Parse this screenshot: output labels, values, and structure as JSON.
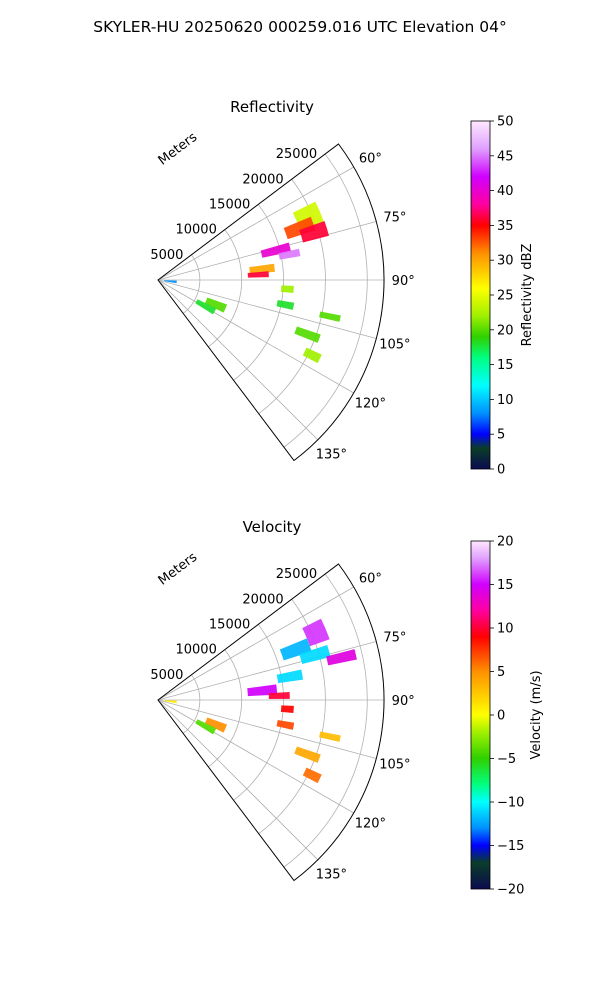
{
  "suptitle": "SKYLER-HU  20250620  000259.016 UTC Elevation 04°",
  "chart_data": [
    {
      "type": "heatmap",
      "title": "Reflectivity",
      "projection": "polar-sector",
      "azimuth_range_deg": [
        53,
        143
      ],
      "range_max_m": 27000,
      "range_label": "Meters",
      "range_ticks": [
        5000,
        10000,
        15000,
        20000,
        25000
      ],
      "range_tick_labels": [
        "5000",
        "10000",
        "15000",
        "20000",
        "25000"
      ],
      "azimuth_ticks": [
        60,
        75,
        90,
        105,
        120,
        135
      ],
      "azimuth_tick_labels": [
        "60°",
        "75°",
        "90°",
        "105°",
        "120°",
        "135°"
      ],
      "grid": true,
      "colorbar": {
        "label": "Reflectivity dBZ",
        "min": 0,
        "max": 50,
        "ticks": [
          0,
          5,
          10,
          15,
          20,
          25,
          30,
          35,
          40,
          45,
          50
        ],
        "tick_labels": [
          "0",
          "5",
          "10",
          "15",
          "20",
          "25",
          "30",
          "35",
          "40",
          "45",
          "50"
        ],
        "stops": [
          {
            "v": 0,
            "c": "#0b0b50"
          },
          {
            "v": 3,
            "c": "#0a3d28"
          },
          {
            "v": 5,
            "c": "#0000ff"
          },
          {
            "v": 8,
            "c": "#0090ff"
          },
          {
            "v": 12,
            "c": "#00ffff"
          },
          {
            "v": 16,
            "c": "#00ff80"
          },
          {
            "v": 19,
            "c": "#30d000"
          },
          {
            "v": 22,
            "c": "#a0f000"
          },
          {
            "v": 26,
            "c": "#ffff00"
          },
          {
            "v": 31,
            "c": "#ff9000"
          },
          {
            "v": 35,
            "c": "#ff0000"
          },
          {
            "v": 38,
            "c": "#ff00a0"
          },
          {
            "v": 42,
            "c": "#d000ff"
          },
          {
            "v": 46,
            "c": "#e0a0ff"
          },
          {
            "v": 50,
            "c": "#ffe8ff"
          }
        ]
      },
      "echoes": [
        {
          "az": 67,
          "r": 19500,
          "daz": 7,
          "dr": 3000,
          "value": 24
        },
        {
          "az": 70,
          "r": 18000,
          "daz": 5,
          "dr": 3500,
          "value": 33
        },
        {
          "az": 73,
          "r": 19500,
          "daz": 5,
          "dr": 3200,
          "value": 36
        },
        {
          "az": 76,
          "r": 14500,
          "daz": 4,
          "dr": 3500,
          "value": 40
        },
        {
          "az": 79,
          "r": 16000,
          "daz": 3,
          "dr": 2500,
          "value": 45
        },
        {
          "az": 84,
          "r": 12500,
          "daz": 4,
          "dr": 3000,
          "value": 30
        },
        {
          "az": 87,
          "r": 12000,
          "daz": 3,
          "dr": 2500,
          "value": 36
        },
        {
          "az": 94,
          "r": 15500,
          "daz": 3,
          "dr": 1500,
          "value": 22
        },
        {
          "az": 101,
          "r": 15500,
          "daz": 3,
          "dr": 2000,
          "value": 18
        },
        {
          "az": 113,
          "r": 7500,
          "daz": 7,
          "dr": 2500,
          "value": 20
        },
        {
          "az": 119,
          "r": 6500,
          "daz": 6,
          "dr": 2500,
          "value": 18
        },
        {
          "az": 110,
          "r": 19000,
          "daz": 3,
          "dr": 3000,
          "value": 20
        },
        {
          "az": 116,
          "r": 20500,
          "daz": 3,
          "dr": 2000,
          "value": 22
        },
        {
          "az": 102,
          "r": 21000,
          "daz": 2,
          "dr": 2500,
          "value": 20
        },
        {
          "az": 96,
          "r": 1500,
          "daz": 8,
          "dr": 1500,
          "value": 8
        }
      ]
    },
    {
      "type": "heatmap",
      "title": "Velocity",
      "projection": "polar-sector",
      "azimuth_range_deg": [
        53,
        143
      ],
      "range_max_m": 27000,
      "range_label": "Meters",
      "range_ticks": [
        5000,
        10000,
        15000,
        20000,
        25000
      ],
      "range_tick_labels": [
        "5000",
        "10000",
        "15000",
        "20000",
        "25000"
      ],
      "azimuth_ticks": [
        60,
        75,
        90,
        105,
        120,
        135
      ],
      "azimuth_tick_labels": [
        "60°",
        "75°",
        "90°",
        "105°",
        "120°",
        "135°"
      ],
      "grid": true,
      "colorbar": {
        "label": "Velocity (m/s)",
        "min": -20,
        "max": 20,
        "ticks": [
          -20,
          -15,
          -10,
          -5,
          0,
          5,
          10,
          15,
          20
        ],
        "tick_labels": [
          "−20",
          "−15",
          "−10",
          "−5",
          "0",
          "5",
          "10",
          "15",
          "20"
        ],
        "stops": [
          {
            "v": -20,
            "c": "#0b0b50"
          },
          {
            "v": -17,
            "c": "#0a3d28"
          },
          {
            "v": -15,
            "c": "#0000ff"
          },
          {
            "v": -13,
            "c": "#0090ff"
          },
          {
            "v": -10,
            "c": "#00ffff"
          },
          {
            "v": -8,
            "c": "#00ff80"
          },
          {
            "v": -5,
            "c": "#30d000"
          },
          {
            "v": -2,
            "c": "#a0f000"
          },
          {
            "v": 0,
            "c": "#ffff00"
          },
          {
            "v": 5,
            "c": "#ff9000"
          },
          {
            "v": 9,
            "c": "#ff0000"
          },
          {
            "v": 12,
            "c": "#ff00a0"
          },
          {
            "v": 15,
            "c": "#d000ff"
          },
          {
            "v": 18,
            "c": "#e0a0ff"
          },
          {
            "v": 20,
            "c": "#ffe8ff"
          }
        ]
      },
      "echoes": [
        {
          "az": 67,
          "r": 20500,
          "daz": 7,
          "dr": 2500,
          "value": 16
        },
        {
          "az": 70,
          "r": 17500,
          "daz": 5,
          "dr": 3500,
          "value": -12
        },
        {
          "az": 74,
          "r": 19500,
          "daz": 4,
          "dr": 3500,
          "value": -11
        },
        {
          "az": 77,
          "r": 22500,
          "daz": 3,
          "dr": 3500,
          "value": 14
        },
        {
          "az": 80,
          "r": 16000,
          "daz": 4,
          "dr": 3000,
          "value": -11
        },
        {
          "az": 85,
          "r": 12500,
          "daz": 5,
          "dr": 3500,
          "value": 15
        },
        {
          "az": 88,
          "r": 14500,
          "daz": 3,
          "dr": 2500,
          "value": 10
        },
        {
          "az": 94,
          "r": 15500,
          "daz": 3,
          "dr": 1500,
          "value": 9
        },
        {
          "az": 101,
          "r": 15500,
          "daz": 3,
          "dr": 2000,
          "value": 7
        },
        {
          "az": 113,
          "r": 7500,
          "daz": 7,
          "dr": 2500,
          "value": 5
        },
        {
          "az": 119,
          "r": 6500,
          "daz": 6,
          "dr": 2500,
          "value": -4
        },
        {
          "az": 110,
          "r": 19000,
          "daz": 3,
          "dr": 3000,
          "value": 4
        },
        {
          "az": 116,
          "r": 20500,
          "daz": 3,
          "dr": 2000,
          "value": 6
        },
        {
          "az": 102,
          "r": 21000,
          "daz": 2,
          "dr": 2500,
          "value": 3
        },
        {
          "az": 96,
          "r": 1500,
          "daz": 8,
          "dr": 1500,
          "value": 1
        }
      ]
    }
  ]
}
